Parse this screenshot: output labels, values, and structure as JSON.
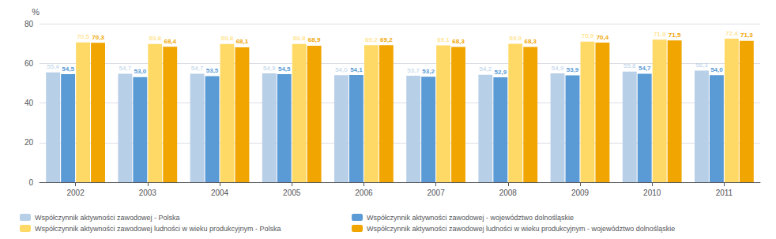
{
  "chart_data": {
    "type": "bar",
    "categories": [
      "2002",
      "2003",
      "2004",
      "2005",
      "2006",
      "2007",
      "2008",
      "2009",
      "2010",
      "2011"
    ],
    "series": [
      {
        "name": "Współczynnik aktywności zawodowej - Polska",
        "color": "#b8cfe8",
        "values": [
          55.4,
          54.7,
          54.7,
          54.9,
          54.0,
          53.7,
          54.2,
          54.9,
          55.8,
          56.3
        ],
        "value_labels": [
          "55,4",
          "54,7",
          "54,7",
          "54,9",
          "54,0",
          "53,7",
          "54,2",
          "54,9",
          "55,8",
          "56,3"
        ]
      },
      {
        "name": "Współczynnik aktywności zawodowej - województwo dolnośląskie",
        "color": "#5b9bd5",
        "values": [
          54.5,
          53.0,
          53.5,
          54.5,
          54.1,
          53.2,
          52.9,
          53.9,
          54.7,
          54.0
        ],
        "value_labels": [
          "54,5",
          "53,0",
          "53,5",
          "54,5",
          "54,1",
          "53,2",
          "52,9",
          "53,9",
          "54,7",
          "54,0"
        ]
      },
      {
        "name": "Współczynnik aktywności zawodowej ludności w wieku produkcyjnym - Polska",
        "color": "#ffd966",
        "values": [
          70.5,
          69.8,
          69.8,
          69.8,
          69.2,
          69.1,
          69.9,
          70.9,
          71.9,
          72.4
        ],
        "value_labels": [
          "70,5",
          "69,8",
          "69,8",
          "69,8",
          "69,2",
          "69,1",
          "69,9",
          "70,9",
          "71,9",
          "72,4"
        ]
      },
      {
        "name": "Współczynnik aktywności zawodowej ludności w wieku produkcyjnym - województwo dolnośląskie",
        "color": "#f0a500",
        "values": [
          70.3,
          68.4,
          68.1,
          68.9,
          69.2,
          68.3,
          68.3,
          70.4,
          71.5,
          71.3
        ],
        "value_labels": [
          "70,3",
          "68,4",
          "68,1",
          "68,9",
          "69,2",
          "68,3",
          "68,3",
          "70,4",
          "71,5",
          "71,3"
        ]
      }
    ],
    "ylabel": "%",
    "ylim": [
      0,
      80
    ],
    "yticks": [
      0,
      20,
      40,
      60,
      80
    ],
    "grid": true,
    "data_labels": true,
    "legend": "bottom"
  }
}
